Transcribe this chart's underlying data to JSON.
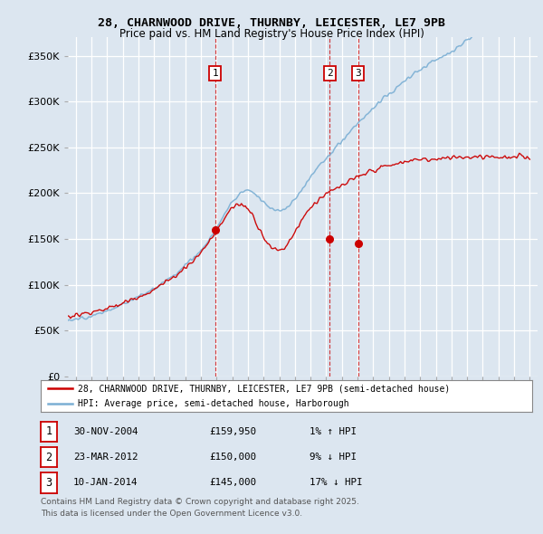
{
  "title_line1": "28, CHARNWOOD DRIVE, THURNBY, LEICESTER, LE7 9PB",
  "title_line2": "Price paid vs. HM Land Registry's House Price Index (HPI)",
  "background_color": "#dce6f0",
  "y_ticks": [
    0,
    50000,
    100000,
    150000,
    200000,
    250000,
    300000,
    350000
  ],
  "y_tick_labels": [
    "£0",
    "£50K",
    "£100K",
    "£150K",
    "£200K",
    "£250K",
    "£300K",
    "£350K"
  ],
  "ylim": [
    0,
    370000
  ],
  "xlim_start": 1995.5,
  "xlim_end": 2025.5,
  "sale_dates": [
    2004.92,
    2012.23,
    2014.03
  ],
  "sale_prices": [
    159950,
    150000,
    145000
  ],
  "sale_labels": [
    "1",
    "2",
    "3"
  ],
  "sale_info": [
    {
      "label": "1",
      "date": "30-NOV-2004",
      "price": "£159,950",
      "hpi": "1% ↑ HPI"
    },
    {
      "label": "2",
      "date": "23-MAR-2012",
      "price": "£150,000",
      "hpi": "9% ↓ HPI"
    },
    {
      "label": "3",
      "date": "10-JAN-2014",
      "price": "£145,000",
      "hpi": "17% ↓ HPI"
    }
  ],
  "legend_line1": "28, CHARNWOOD DRIVE, THURNBY, LEICESTER, LE7 9PB (semi-detached house)",
  "legend_line2": "HPI: Average price, semi-detached house, Harborough",
  "footer": "Contains HM Land Registry data © Crown copyright and database right 2025.\nThis data is licensed under the Open Government Licence v3.0.",
  "red_color": "#cc0000",
  "blue_color": "#7bafd4",
  "grid_color": "#ffffff"
}
